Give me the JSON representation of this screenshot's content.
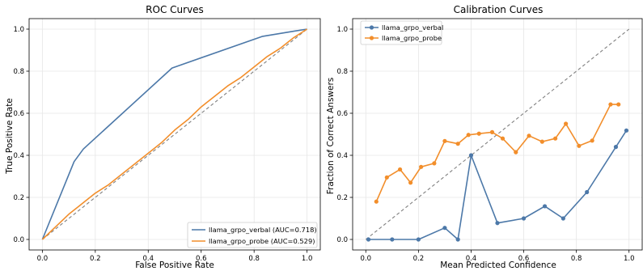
{
  "chart_data": [
    {
      "type": "line",
      "title": "ROC Curves",
      "xlabel": "False Positive Rate",
      "ylabel": "True Positive Rate",
      "xlim": [
        -0.05,
        1.05
      ],
      "ylim": [
        -0.05,
        1.05
      ],
      "xticks": [
        "0.0",
        "0.2",
        "0.4",
        "0.6",
        "0.8",
        "1.0"
      ],
      "yticks": [
        "0.0",
        "0.2",
        "0.4",
        "0.6",
        "0.8",
        "1.0"
      ],
      "grid": true,
      "legend": "lower-right",
      "reference_line": [
        [
          0,
          0
        ],
        [
          1,
          1
        ]
      ],
      "series": [
        {
          "name": "llama_grpo_verbal (AUC=0.718)",
          "color": "#4c78a8",
          "x": [
            0.0,
            0.12,
            0.155,
            0.49,
            0.83,
            0.95,
            1.0
          ],
          "y": [
            0.0,
            0.37,
            0.43,
            0.815,
            0.965,
            0.99,
            1.0
          ]
        },
        {
          "name": "llama_grpo_probe (AUC=0.529)",
          "color": "#f28e2b",
          "x": [
            0.0,
            0.05,
            0.1,
            0.15,
            0.2,
            0.25,
            0.3,
            0.35,
            0.4,
            0.45,
            0.5,
            0.55,
            0.6,
            0.65,
            0.7,
            0.75,
            0.8,
            0.85,
            0.9,
            0.95,
            1.0
          ],
          "y": [
            0.0,
            0.06,
            0.12,
            0.17,
            0.22,
            0.26,
            0.31,
            0.36,
            0.41,
            0.46,
            0.52,
            0.57,
            0.63,
            0.68,
            0.73,
            0.77,
            0.82,
            0.87,
            0.91,
            0.96,
            1.0
          ]
        }
      ]
    },
    {
      "type": "line",
      "title": "Calibration Curves",
      "xlabel": "Mean Predicted Confidence",
      "ylabel": "Fraction of Correct Answers",
      "xlim": [
        -0.05,
        1.05
      ],
      "ylim": [
        -0.05,
        1.05
      ],
      "xticks": [
        "0.0",
        "0.2",
        "0.4",
        "0.6",
        "0.8",
        "1.0"
      ],
      "yticks": [
        "0.0",
        "0.2",
        "0.4",
        "0.6",
        "0.8",
        "1.0"
      ],
      "grid": true,
      "legend": "upper-left",
      "reference_line": [
        [
          0,
          0
        ],
        [
          1,
          1
        ]
      ],
      "series": [
        {
          "name": "llama_grpo_verbal",
          "color": "#4c78a8",
          "x": [
            0.01,
            0.1,
            0.2,
            0.3,
            0.35,
            0.4,
            0.5,
            0.6,
            0.68,
            0.75,
            0.84,
            0.95,
            0.99
          ],
          "y": [
            0.0,
            0.0,
            0.0,
            0.055,
            0.0,
            0.4,
            0.078,
            0.1,
            0.158,
            0.1,
            0.225,
            0.44,
            0.518
          ]
        },
        {
          "name": "llama_grpo_probe",
          "color": "#f28e2b",
          "x": [
            0.04,
            0.08,
            0.13,
            0.17,
            0.21,
            0.26,
            0.3,
            0.35,
            0.39,
            0.43,
            0.48,
            0.52,
            0.57,
            0.62,
            0.67,
            0.72,
            0.76,
            0.81,
            0.86,
            0.93,
            0.96
          ],
          "y": [
            0.18,
            0.295,
            0.333,
            0.27,
            0.345,
            0.362,
            0.468,
            0.455,
            0.497,
            0.503,
            0.51,
            0.48,
            0.415,
            0.493,
            0.465,
            0.48,
            0.55,
            0.445,
            0.47,
            0.642,
            0.642
          ]
        }
      ]
    }
  ]
}
